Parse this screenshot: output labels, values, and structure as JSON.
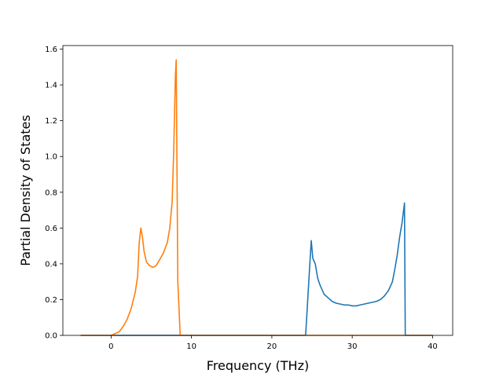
{
  "chart_data": {
    "type": "line",
    "title": "",
    "xlabel": "Frequency (THz)",
    "ylabel": "Partial Density of States",
    "xlim": [
      -6.0,
      42.5
    ],
    "ylim": [
      0.0,
      1.62
    ],
    "xticks": [
      "0",
      "10",
      "20",
      "30",
      "40"
    ],
    "xtick_values": [
      0,
      10,
      20,
      30,
      40
    ],
    "yticks": [
      "0.0",
      "0.2",
      "0.4",
      "0.6",
      "0.8",
      "1.0",
      "1.2",
      "1.4",
      "1.6"
    ],
    "ytick_values": [
      0.0,
      0.2,
      0.4,
      0.6,
      0.8,
      1.0,
      1.2,
      1.4,
      1.6
    ],
    "grid": false,
    "legend": "none",
    "series": [
      {
        "color": "#1f77b4",
        "x": [
          -3.8,
          24.2,
          24.4,
          24.7,
          24.9,
          25.1,
          25.4,
          25.7,
          26.0,
          26.5,
          27.0,
          27.5,
          28.0,
          28.5,
          29.0,
          29.5,
          30.0,
          30.5,
          31.0,
          31.5,
          32.0,
          32.5,
          33.0,
          33.5,
          34.0,
          34.5,
          35.0,
          35.3,
          35.6,
          35.9,
          36.2,
          36.5,
          36.6,
          40.0
        ],
        "y": [
          0.0,
          0.0,
          0.15,
          0.38,
          0.53,
          0.43,
          0.4,
          0.32,
          0.28,
          0.23,
          0.21,
          0.19,
          0.18,
          0.175,
          0.17,
          0.17,
          0.165,
          0.165,
          0.17,
          0.175,
          0.18,
          0.185,
          0.19,
          0.2,
          0.22,
          0.25,
          0.3,
          0.37,
          0.45,
          0.55,
          0.63,
          0.74,
          0.0,
          0.0
        ]
      },
      {
        "color": "#ff7f0e",
        "x": [
          -3.8,
          0.0,
          0.5,
          1.0,
          1.5,
          2.0,
          2.5,
          3.0,
          3.3,
          3.5,
          3.7,
          3.9,
          4.1,
          4.4,
          4.8,
          5.2,
          5.6,
          6.0,
          6.5,
          7.0,
          7.3,
          7.6,
          7.8,
          8.0,
          8.1,
          8.3,
          8.6,
          40.0
        ],
        "y": [
          0.0,
          0.0,
          0.01,
          0.02,
          0.05,
          0.09,
          0.15,
          0.24,
          0.33,
          0.52,
          0.6,
          0.55,
          0.47,
          0.41,
          0.39,
          0.38,
          0.39,
          0.42,
          0.46,
          0.52,
          0.6,
          0.75,
          1.05,
          1.45,
          1.54,
          0.3,
          0.0,
          0.0
        ]
      }
    ]
  }
}
